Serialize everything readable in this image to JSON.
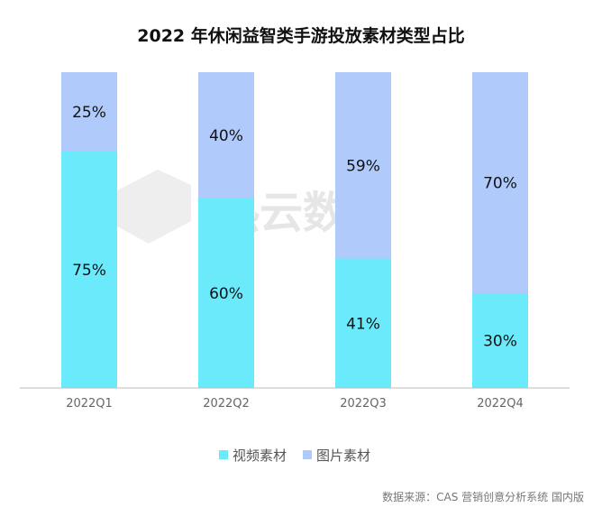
{
  "chart_data": {
    "type": "bar",
    "stacked": true,
    "percent": true,
    "title": "2022 年休闲益智类手游投放素材类型占比",
    "categories": [
      "2022Q1",
      "2022Q2",
      "2022Q3",
      "2022Q4"
    ],
    "series": [
      {
        "name": "视频素材",
        "values": [
          75,
          60,
          41,
          30
        ],
        "labels": [
          "75%",
          "60%",
          "41%",
          "30%"
        ],
        "color": "#6beafc"
      },
      {
        "name": "图片素材",
        "values": [
          25,
          40,
          59,
          70
        ],
        "labels": [
          "25%",
          "40%",
          "59%",
          "70%"
        ],
        "color": "#b0cbfb"
      }
    ],
    "ylim": [
      0,
      100
    ],
    "grid": false,
    "legend_position": "bottom-center",
    "source": "数据来源：CAS 营销创意分析系统 国内版",
    "watermark": "热云数据"
  }
}
